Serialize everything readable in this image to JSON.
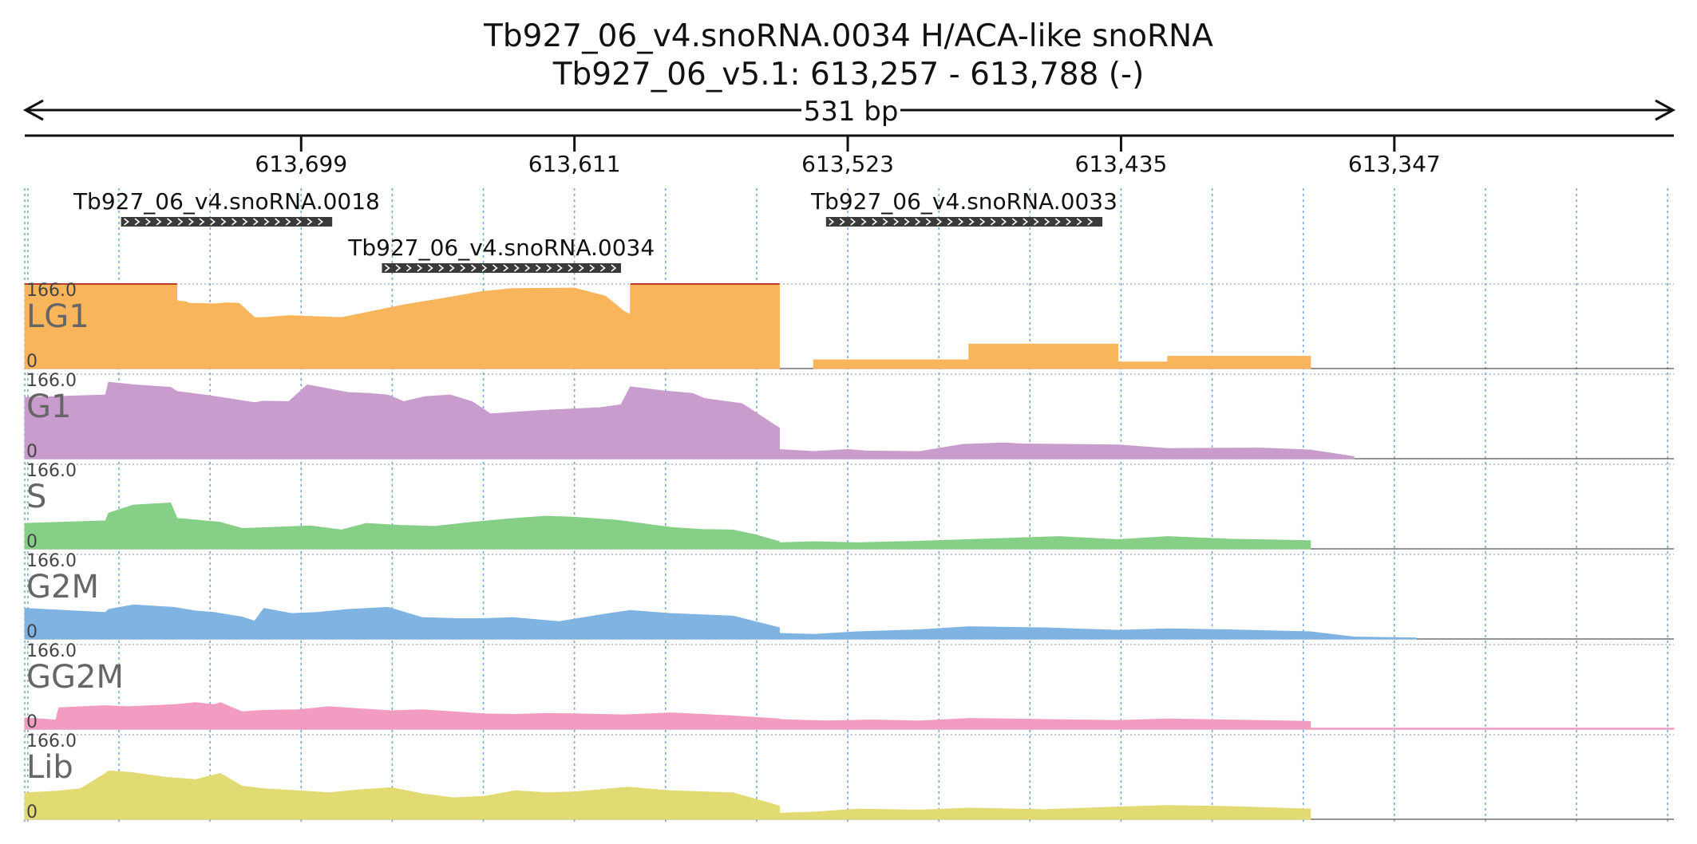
{
  "chart_data": {
    "type": "area",
    "title": "Tb927_06_v4.snoRNA.0034  H/ACA-like snoRNA",
    "subtitle": "Tb927_06_v5.1: 613,257 - 613,788 (-)",
    "span_label": "531 bp",
    "x_ticks": [
      "613,699",
      "613,611",
      "613,523",
      "613,435",
      "613,347"
    ],
    "x_tick_positions": [
      613699,
      613611,
      613523,
      613435,
      613347
    ],
    "xlim": [
      613788,
      613257
    ],
    "ylim": [
      0,
      166.0
    ],
    "y_max_label": "166.0",
    "y_min_label": "0",
    "genes": [
      {
        "name": "Tb927_06_v4.snoRNA.0018",
        "start": 613757,
        "end": 613689,
        "row": 0
      },
      {
        "name": "Tb927_06_v4.snoRNA.0034",
        "start": 613673,
        "end": 613596,
        "row": 1
      },
      {
        "name": "Tb927_06_v4.snoRNA.0033",
        "start": 613530,
        "end": 613441,
        "row": 0
      }
    ],
    "tracks": [
      {
        "name": "LG1",
        "color": "#f9b55c",
        "clip_color": "#c0392b",
        "segments": [
          {
            "x": [
              613788,
              613739
            ],
            "y": [
              166,
              166
            ]
          },
          {
            "x": [
              613739,
              613736,
              613735,
              613727,
              613723,
              613719,
              613714,
              613711,
              613703,
              613686,
              613666,
              613651,
              613641,
              613631,
              613611,
              613601,
              613595,
              613593
            ],
            "y": [
              133,
              131,
              128,
              127,
              129,
              128,
              100,
              100,
              104,
              100,
              125,
              140,
              151,
              157,
              158,
              142,
              112,
              106
            ]
          },
          {
            "x": [
              613593,
              613545
            ],
            "y": [
              166,
              166
            ]
          },
          {
            "x": [
              613534,
              613484
            ],
            "y": [
              17,
              17
            ]
          },
          {
            "x": [
              613484,
              613436
            ],
            "y": [
              48,
              48
            ]
          },
          {
            "x": [
              613436,
              613420
            ],
            "y": [
              13,
              13
            ]
          },
          {
            "x": [
              613420,
              613374
            ],
            "y": [
              24,
              24
            ]
          }
        ]
      },
      {
        "name": "G1",
        "color": "#c89ccc",
        "segments": [
          {
            "x": [
              613788,
              613762,
              613761,
              613753,
              613741,
              613739,
              613730,
              613714,
              613711,
              613703,
              613697,
              613684,
              613677,
              613671,
              613666,
              613659,
              613651,
              613644,
              613638,
              613621,
              613603,
              613596,
              613593,
              613582,
              613573,
              613569,
              613557,
              613545
            ],
            "y": [
              120,
              125,
              150,
              145,
              140,
              132,
              125,
              110,
              113,
              112,
              145,
              130,
              128,
              125,
              112,
              122,
              125,
              112,
              88,
              95,
              100,
              106,
              141,
              133,
              128,
              118,
              108,
              60
            ]
          },
          {
            "x": [
              613545,
              613534,
              613523,
              613517,
              613500,
              613486,
              613473,
              613467,
              613450,
              613436,
              613420,
              613390,
              613374,
              613360
            ],
            "y": [
              18,
              14,
              18,
              15,
              14,
              28,
              31,
              29,
              28,
              27,
              20,
              21,
              17,
              4
            ]
          }
        ]
      },
      {
        "name": "S",
        "color": "#86cf87",
        "segments": [
          {
            "x": [
              613788,
              613762,
              613761,
              613753,
              613741,
              613739,
              613725,
              613718,
              613708,
              613696,
              613686,
              613678,
              613667,
              613656,
              613644,
              613630,
              613620,
              613611,
              613597,
              613580,
              613570,
              613560,
              613553,
              613545
            ],
            "y": [
              50,
              55,
              70,
              86,
              90,
              60,
              52,
              40,
              42,
              45,
              37,
              50,
              46,
              44,
              52,
              60,
              64,
              62,
              56,
              42,
              38,
              37,
              28,
              14
            ]
          },
          {
            "x": [
              613545,
              613534,
              613520,
              613506,
              613490,
              613470,
              613455,
              613436,
              613420,
              613400,
              613374
            ],
            "y": [
              12,
              14,
              12,
              14,
              17,
              21,
              24,
              18,
              24,
              19,
              16
            ]
          }
        ]
      },
      {
        "name": "G2M",
        "color": "#7fb3e2",
        "segments": [
          {
            "x": [
              613788,
              613762,
              613761,
              613753,
              613740,
              613733,
              613727,
              613725,
              613718,
              613714,
              613711,
              613702,
              613694,
              613684,
              613671,
              613660,
              613649,
              613640,
              613631,
              613616,
              613600,
              613593,
              613580,
              613560,
              613545
            ],
            "y": [
              60,
              52,
              58,
              67,
              62,
              55,
              52,
              50,
              43,
              35,
              60,
              50,
              52,
              58,
              62,
              42,
              40,
              40,
              42,
              34,
              50,
              56,
              50,
              45,
              22
            ]
          },
          {
            "x": [
              613545,
              613534,
              613520,
              613500,
              613484,
              613460,
              613436,
              613420,
              613400,
              613374,
              613360,
              613340
            ],
            "y": [
              11,
              9,
              14,
              18,
              24,
              22,
              17,
              20,
              18,
              14,
              4,
              2
            ]
          }
        ]
      },
      {
        "name": "GG2M",
        "color": "#f39cc1",
        "segments": [
          {
            "x": [
              613788,
              613778,
              613777,
              613762,
              613755,
              613740,
              613733,
              613727,
              613725,
              613718,
              613711,
              613700,
              613690,
              613680,
              613670,
              613660,
              613650,
              613640,
              613630,
              613620,
              613610,
              613595,
              613580,
              613560,
              613545
            ],
            "y": [
              22,
              18,
              42,
              46,
              44,
              48,
              52,
              48,
              52,
              34,
              37,
              38,
              44,
              40,
              36,
              38,
              34,
              30,
              29,
              31,
              30,
              28,
              32,
              26,
              20
            ]
          },
          {
            "x": [
              613545,
              613530,
              613515,
              613500,
              613484,
              613460,
              613436,
              613420,
              613400,
              613374
            ],
            "y": [
              19,
              16,
              18,
              16,
              21,
              19,
              17,
              20,
              18,
              15
            ]
          },
          {
            "x": [
              613374,
              613257
            ],
            "y": [
              2,
              2
            ]
          }
        ]
      },
      {
        "name": "Lib",
        "color": "#e2da73",
        "segments": [
          {
            "x": [
              613788,
              613778,
              613770,
              613762,
              613761,
              613754,
              613742,
              613733,
              613725,
              613718,
              613711,
              613700,
              613690,
              613680,
              613670,
              613660,
              613650,
              613640,
              613630,
              613620,
              613610,
              613594,
              613580,
              613560,
              613545
            ],
            "y": [
              52,
              55,
              60,
              90,
              95,
              92,
              82,
              78,
              90,
              65,
              60,
              56,
              52,
              58,
              62,
              50,
              42,
              45,
              56,
              52,
              54,
              63,
              56,
              52,
              26
            ]
          },
          {
            "x": [
              613545,
              613534,
              613520,
              613500,
              613484,
              613460,
              613436,
              613420,
              613400,
              613374
            ],
            "y": [
              12,
              14,
              20,
              18,
              22,
              19,
              24,
              27,
              25,
              20
            ]
          }
        ]
      }
    ]
  }
}
